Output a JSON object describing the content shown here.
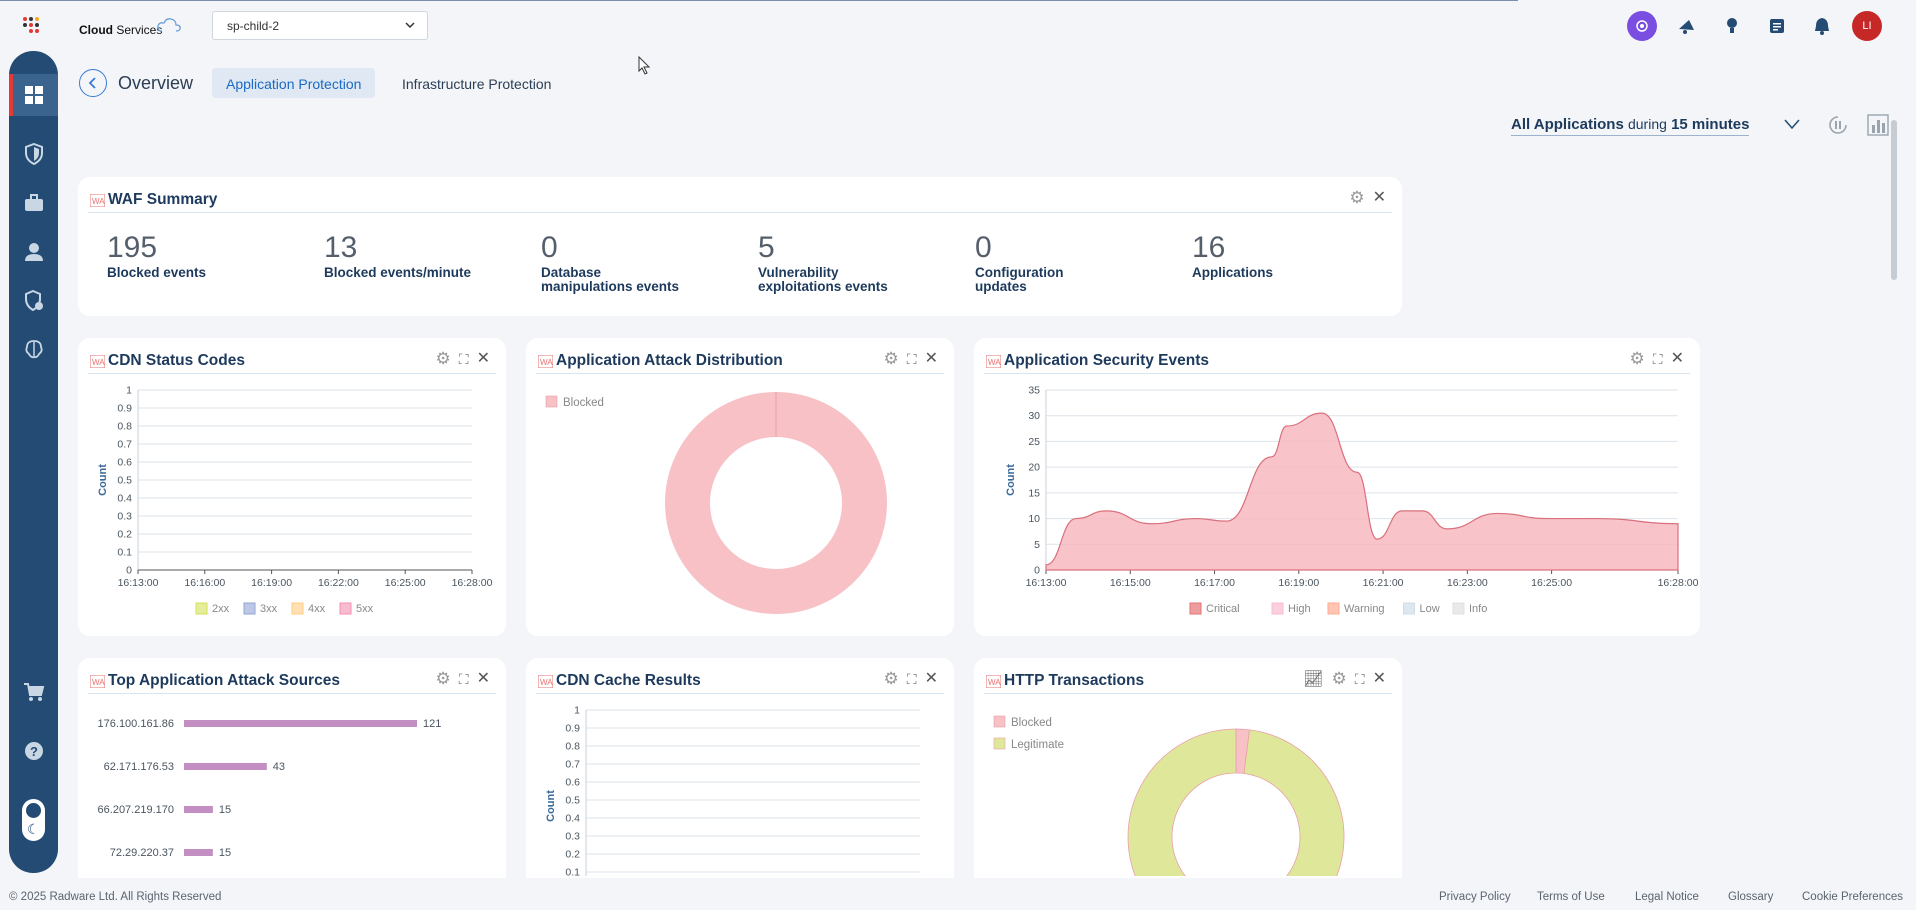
{
  "header": {
    "brand_bold": "Cloud",
    "brand_rest": "Services",
    "tenant": "sp-child-2",
    "avatar": "LI",
    "icons": [
      "ai-assistant-icon",
      "announcement-icon",
      "lightbulb-icon",
      "news-icon",
      "bell-icon"
    ]
  },
  "sidebar": {
    "items": [
      "dashboard-icon",
      "shield-icon",
      "briefcase-icon",
      "user-icon",
      "security-settings-icon",
      "brain-icon",
      "cart-icon",
      "help-icon"
    ]
  },
  "page": {
    "title": "Overview",
    "tabs": [
      "Application Protection",
      "Infrastructure Protection"
    ],
    "scope": {
      "apps": "All Applications",
      "during": "during",
      "window": "15 minutes"
    }
  },
  "waf": {
    "title": "WAF Summary",
    "stats": [
      {
        "value": "195",
        "label1": "Blocked events",
        "label2": ""
      },
      {
        "value": "13",
        "label1": "Blocked events/minute",
        "label2": ""
      },
      {
        "value": "0",
        "label1": "Database",
        "label2": "manipulations events"
      },
      {
        "value": "5",
        "label1": "Vulnerability",
        "label2": "exploitations events"
      },
      {
        "value": "0",
        "label1": "Configuration",
        "label2": "updates"
      },
      {
        "value": "16",
        "label1": "Applications",
        "label2": ""
      }
    ]
  },
  "cards": {
    "cdn_status": "CDN Status Codes",
    "attack_dist": "Application Attack Distribution",
    "sec_events": "Application Security Events",
    "top_sources": "Top Application Attack Sources",
    "cdn_cache": "CDN Cache Results",
    "http_tx": "HTTP Transactions"
  },
  "chart_data": [
    {
      "id": "cdn_status",
      "type": "line",
      "ylabel": "Count",
      "ylim": [
        0,
        1
      ],
      "yticks": [
        "0",
        "0.1",
        "0.2",
        "0.3",
        "0.4",
        "0.5",
        "0.6",
        "0.7",
        "0.8",
        "0.9",
        "1"
      ],
      "xticks": [
        "16:13:00",
        "16:16:00",
        "16:19:00",
        "16:22:00",
        "16:25:00",
        "16:28:00"
      ],
      "series": [
        {
          "name": "2xx",
          "color": "#d4e157",
          "values": []
        },
        {
          "name": "3xx",
          "color": "#90a4d4",
          "values": []
        },
        {
          "name": "4xx",
          "color": "#ffcc80",
          "values": []
        },
        {
          "name": "5xx",
          "color": "#f48fb1",
          "values": []
        }
      ]
    },
    {
      "id": "attack_dist",
      "type": "pie",
      "legend": [
        "Blocked"
      ],
      "colors": [
        "#f7c1c6"
      ],
      "values": [
        195
      ]
    },
    {
      "id": "sec_events",
      "type": "area",
      "ylabel": "Count",
      "ylim": [
        0,
        35
      ],
      "yticks": [
        "0",
        "5",
        "10",
        "15",
        "20",
        "25",
        "30",
        "35"
      ],
      "xticks": [
        "16:13:00",
        "16:15:00",
        "16:17:00",
        "16:19:00",
        "16:21:00",
        "16:23:00",
        "16:25:00",
        "16:28:00"
      ],
      "legend": [
        {
          "name": "Critical",
          "color": "#e57373"
        },
        {
          "name": "High",
          "color": "#f8bbd0"
        },
        {
          "name": "Warning",
          "color": "#ffab91"
        },
        {
          "name": "Low",
          "color": "#cfdde8"
        },
        {
          "name": "Info",
          "color": "#e0e0e0"
        }
      ],
      "series": [
        {
          "name": "High",
          "x": [
            0,
            0.6,
            1.2,
            2.1,
            3,
            3.6,
            4.5,
            4.8,
            5.5,
            6.2,
            6.6,
            7.1,
            7.5,
            8,
            9,
            10,
            11,
            12.6
          ],
          "values": [
            1,
            10,
            11.5,
            9,
            10,
            9.5,
            22,
            28,
            30.5,
            19,
            6,
            11.5,
            11.5,
            8,
            11,
            10,
            10,
            9
          ]
        }
      ]
    },
    {
      "id": "top_sources",
      "type": "bar",
      "categories": [
        "176.100.161.86",
        "62.171.176.53",
        "66.207.219.170",
        "72.29.220.37"
      ],
      "values": [
        121,
        43,
        15,
        15
      ],
      "color": "#c38fc2"
    },
    {
      "id": "cdn_cache",
      "type": "line",
      "ylabel": "Count",
      "ylim": [
        0,
        1
      ],
      "yticks": [
        "0.1",
        "0.2",
        "0.3",
        "0.4",
        "0.5",
        "0.6",
        "0.7",
        "0.8",
        "0.9",
        "1"
      ],
      "series": []
    },
    {
      "id": "http_tx",
      "type": "pie",
      "legend": [
        "Blocked",
        "Legitimate"
      ],
      "colors": [
        "#f7c1c6",
        "#dfe89a"
      ],
      "values": [
        2,
        98
      ]
    }
  ],
  "footer": {
    "copyright": "© 2025 Radware Ltd. All Rights Reserved",
    "links": [
      "Privacy Policy",
      "Terms of Use",
      "Legal Notice",
      "Glossary",
      "Cookie Preferences"
    ]
  }
}
